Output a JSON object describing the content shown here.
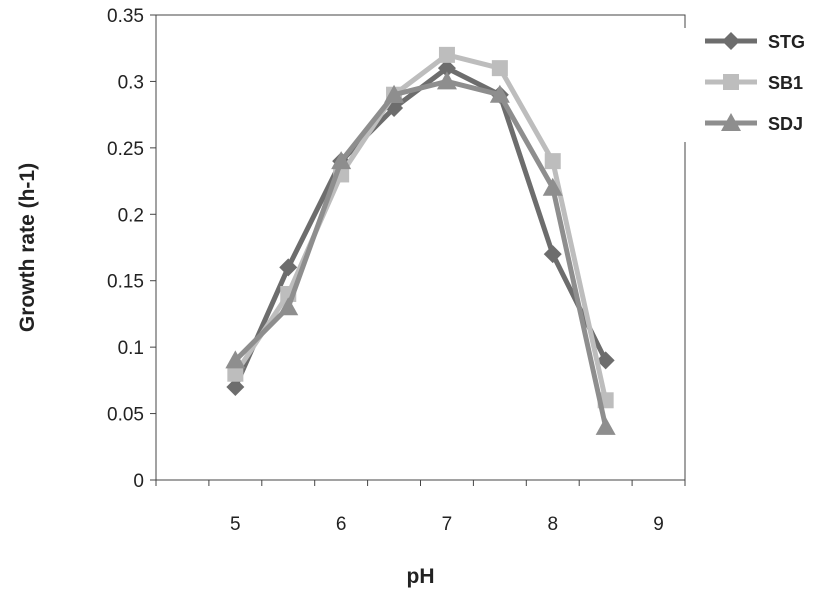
{
  "chart_data": {
    "type": "line",
    "title": "",
    "xlabel": "pH",
    "ylabel": "Growth rate (h-1)",
    "xlim": [
      4.25,
      9.25
    ],
    "ylim": [
      0,
      0.35
    ],
    "x_ticks": [
      5,
      6,
      7,
      8,
      9
    ],
    "x_tick_labels": [
      "5",
      "6",
      "7",
      "8",
      "9"
    ],
    "y_ticks": [
      0,
      0.05,
      0.1,
      0.15,
      0.2,
      0.25,
      0.3,
      0.35
    ],
    "y_tick_labels": [
      "0",
      "0.05",
      "0.1",
      "0.15",
      "0.2",
      "0.25",
      "0.3",
      "0.35"
    ],
    "grid": false,
    "legend_position": "right",
    "series": [
      {
        "name": "STG",
        "marker": "diamond",
        "color": "#6d6d6d",
        "x": [
          5,
          5.5,
          6,
          6.5,
          7,
          7.5,
          8,
          8.5
        ],
        "values": [
          0.07,
          0.16,
          0.24,
          0.28,
          0.31,
          0.29,
          0.17,
          0.09
        ]
      },
      {
        "name": "SB1",
        "marker": "square",
        "color": "#bdbdbd",
        "x": [
          5,
          5.5,
          6,
          6.5,
          7,
          7.5,
          8,
          8.5
        ],
        "values": [
          0.08,
          0.14,
          0.23,
          0.29,
          0.32,
          0.31,
          0.24,
          0.06
        ]
      },
      {
        "name": "SDJ",
        "marker": "triangle",
        "color": "#8e8e8e",
        "x": [
          5,
          5.5,
          6,
          6.5,
          7,
          7.5,
          8,
          8.5
        ],
        "values": [
          0.09,
          0.13,
          0.24,
          0.29,
          0.3,
          0.29,
          0.22,
          0.04
        ]
      }
    ]
  }
}
